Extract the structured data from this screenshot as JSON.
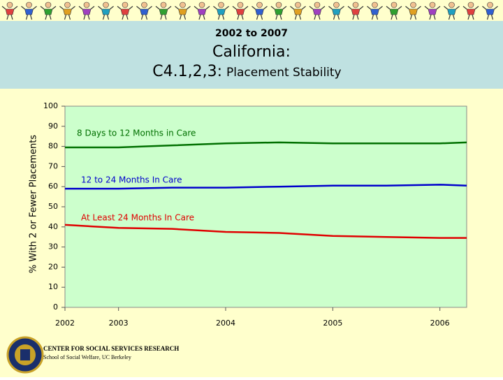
{
  "chart_data": {
    "type": "line",
    "period": "2002 to 2007",
    "title": "California:",
    "subtitle_code": "C4.1,2,3:",
    "subtitle": "Placement Stability",
    "y_label": "% With 2 or Fewer Placements",
    "x": [
      2002.5,
      2003,
      2003.5,
      2004,
      2004.5,
      2005,
      2005.5,
      2006,
      2006.25
    ],
    "xlim": [
      2002.5,
      2006.25
    ],
    "xticks": [
      {
        "value": 2002.5,
        "label": "2002"
      },
      2003,
      2004,
      2005,
      2006
    ],
    "ylim": [
      0,
      100
    ],
    "yticks": [
      0,
      10,
      20,
      30,
      40,
      50,
      60,
      70,
      80,
      90,
      100
    ],
    "series": [
      {
        "name": "8 Days to 12 Months in Care",
        "color": "#007000",
        "values": [
          79.5,
          79.5,
          80.5,
          81.5,
          82,
          81.5,
          81.5,
          81.5,
          82
        ]
      },
      {
        "name": "12 to 24 Months In Care",
        "color": "#0000cc",
        "values": [
          59,
          59,
          59.5,
          59.5,
          60,
          60.5,
          60.5,
          61,
          60.5
        ]
      },
      {
        "name": "At Least 24 Months In Care",
        "color": "#e00000",
        "values": [
          41,
          39.5,
          39,
          37.5,
          37,
          35.5,
          35,
          34.5,
          34.5
        ]
      }
    ],
    "footer": [
      "CENTER FOR SOCIAL SERVICES RESEARCH",
      "School of Social Welfare, UC Berkeley"
    ]
  }
}
